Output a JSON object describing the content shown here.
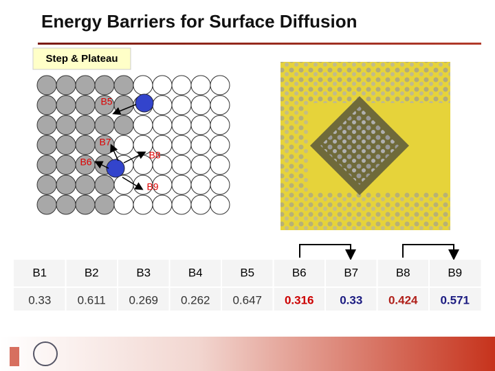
{
  "header": {
    "title": "Energy Barriers for Surface Diffusion",
    "tag": "Step & Plateau"
  },
  "diagram": {
    "labels": [
      "B5",
      "B7",
      "B8",
      "B6",
      "B9"
    ]
  },
  "table": {
    "header": [
      "B1",
      "B2",
      "B3",
      "B4",
      "B5",
      "B6",
      "B7",
      "B8",
      "B9"
    ],
    "rows": [
      [
        "0.33",
        "0.611",
        "0.269",
        "0.262",
        "0.647",
        "0.316",
        "0.33",
        "0.424",
        "0.571"
      ]
    ]
  }
}
